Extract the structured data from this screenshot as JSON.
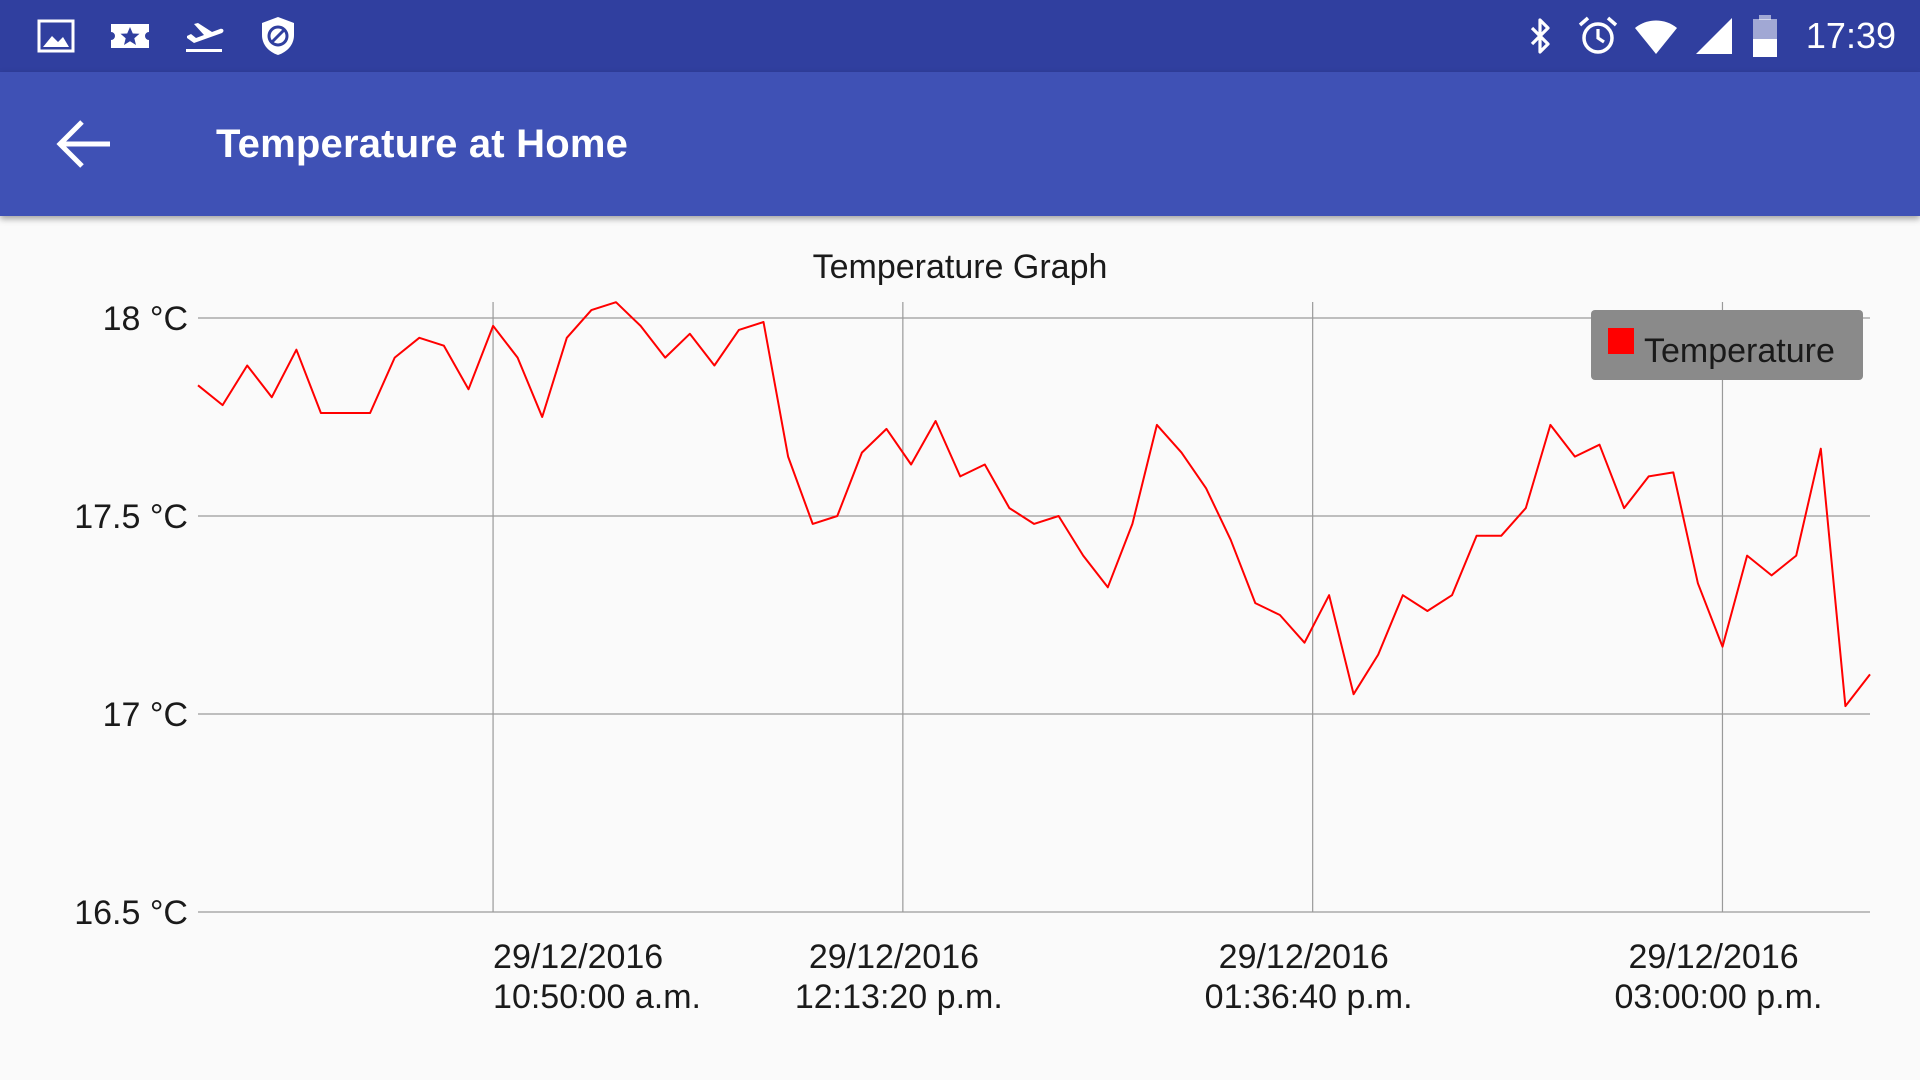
{
  "status_bar": {
    "left_icons": [
      "image-icon",
      "ticket-star-icon",
      "airplane-takeoff-icon",
      "shield-block-icon"
    ],
    "right_icons": [
      "bluetooth-icon",
      "alarm-icon",
      "wifi-icon",
      "cell-signal-icon",
      "battery-icon"
    ],
    "time": "17:39"
  },
  "app_bar": {
    "back_icon": "arrow-back-icon",
    "title": "Temperature at Home"
  },
  "chart_data": {
    "type": "line",
    "title": "Temperature Graph",
    "xlabel": "",
    "ylabel": "",
    "ylim": [
      16.5,
      18.0
    ],
    "yticks": [
      16.5,
      17.0,
      17.5,
      18.0
    ],
    "ytick_labels": [
      "16.5 °C",
      "17 °C",
      "17.5 °C",
      "18 °C"
    ],
    "xlim": [
      "29/12/2016 09:50:00",
      "29/12/2016 15:30:00"
    ],
    "xticks": [
      {
        "time": "29/12/2016 10:50:00",
        "date": "29/12/2016",
        "clock": "10:50:00 a.m."
      },
      {
        "time": "29/12/2016 12:13:20",
        "date": "29/12/2016",
        "clock": "12:13:20 p.m."
      },
      {
        "time": "29/12/2016 13:36:40",
        "date": "29/12/2016",
        "clock": "01:36:40 p.m."
      },
      {
        "time": "29/12/2016 15:00:00",
        "date": "29/12/2016",
        "clock": "03:00:00 p.m."
      }
    ],
    "grid": true,
    "legend_position": "top-right",
    "series": [
      {
        "name": "Temperature",
        "color": "#ff0000",
        "points": [
          [
            "29/12/2016 09:50:00",
            17.83
          ],
          [
            "29/12/2016 09:55:00",
            17.78
          ],
          [
            "29/12/2016 10:00:00",
            17.88
          ],
          [
            "29/12/2016 10:05:00",
            17.8
          ],
          [
            "29/12/2016 10:10:00",
            17.92
          ],
          [
            "29/12/2016 10:15:00",
            17.76
          ],
          [
            "29/12/2016 10:20:00",
            17.76
          ],
          [
            "29/12/2016 10:25:00",
            17.76
          ],
          [
            "29/12/2016 10:30:00",
            17.9
          ],
          [
            "29/12/2016 10:35:00",
            17.95
          ],
          [
            "29/12/2016 10:40:00",
            17.93
          ],
          [
            "29/12/2016 10:45:00",
            17.82
          ],
          [
            "29/12/2016 10:50:00",
            17.98
          ],
          [
            "29/12/2016 10:55:00",
            17.9
          ],
          [
            "29/12/2016 11:00:00",
            17.75
          ],
          [
            "29/12/2016 11:05:00",
            17.95
          ],
          [
            "29/12/2016 11:10:00",
            18.02
          ],
          [
            "29/12/2016 11:15:00",
            18.04
          ],
          [
            "29/12/2016 11:20:00",
            17.98
          ],
          [
            "29/12/2016 11:25:00",
            17.9
          ],
          [
            "29/12/2016 11:30:00",
            17.96
          ],
          [
            "29/12/2016 11:35:00",
            17.88
          ],
          [
            "29/12/2016 11:40:00",
            17.97
          ],
          [
            "29/12/2016 11:45:00",
            17.99
          ],
          [
            "29/12/2016 11:50:00",
            17.65
          ],
          [
            "29/12/2016 11:55:00",
            17.48
          ],
          [
            "29/12/2016 12:00:00",
            17.5
          ],
          [
            "29/12/2016 12:05:00",
            17.66
          ],
          [
            "29/12/2016 12:10:00",
            17.72
          ],
          [
            "29/12/2016 12:15:00",
            17.63
          ],
          [
            "29/12/2016 12:20:00",
            17.74
          ],
          [
            "29/12/2016 12:25:00",
            17.6
          ],
          [
            "29/12/2016 12:30:00",
            17.63
          ],
          [
            "29/12/2016 12:35:00",
            17.52
          ],
          [
            "29/12/2016 12:40:00",
            17.48
          ],
          [
            "29/12/2016 12:45:00",
            17.5
          ],
          [
            "29/12/2016 12:50:00",
            17.4
          ],
          [
            "29/12/2016 12:55:00",
            17.32
          ],
          [
            "29/12/2016 13:00:00",
            17.48
          ],
          [
            "29/12/2016 13:05:00",
            17.73
          ],
          [
            "29/12/2016 13:10:00",
            17.66
          ],
          [
            "29/12/2016 13:15:00",
            17.57
          ],
          [
            "29/12/2016 13:20:00",
            17.44
          ],
          [
            "29/12/2016 13:25:00",
            17.28
          ],
          [
            "29/12/2016 13:30:00",
            17.25
          ],
          [
            "29/12/2016 13:35:00",
            17.18
          ],
          [
            "29/12/2016 13:40:00",
            17.3
          ],
          [
            "29/12/2016 13:45:00",
            17.05
          ],
          [
            "29/12/2016 13:50:00",
            17.15
          ],
          [
            "29/12/2016 13:55:00",
            17.3
          ],
          [
            "29/12/2016 14:00:00",
            17.26
          ],
          [
            "29/12/2016 14:05:00",
            17.3
          ],
          [
            "29/12/2016 14:10:00",
            17.45
          ],
          [
            "29/12/2016 14:15:00",
            17.45
          ],
          [
            "29/12/2016 14:20:00",
            17.52
          ],
          [
            "29/12/2016 14:25:00",
            17.73
          ],
          [
            "29/12/2016 14:30:00",
            17.65
          ],
          [
            "29/12/2016 14:35:00",
            17.68
          ],
          [
            "29/12/2016 14:40:00",
            17.52
          ],
          [
            "29/12/2016 14:45:00",
            17.6
          ],
          [
            "29/12/2016 14:50:00",
            17.61
          ],
          [
            "29/12/2016 14:55:00",
            17.33
          ],
          [
            "29/12/2016 15:00:00",
            17.17
          ],
          [
            "29/12/2016 15:05:00",
            17.4
          ],
          [
            "29/12/2016 15:10:00",
            17.35
          ],
          [
            "29/12/2016 15:15:00",
            17.4
          ],
          [
            "29/12/2016 15:20:00",
            17.67
          ],
          [
            "29/12/2016 15:25:00",
            17.02
          ],
          [
            "29/12/2016 15:30:00",
            17.1
          ]
        ]
      }
    ]
  }
}
